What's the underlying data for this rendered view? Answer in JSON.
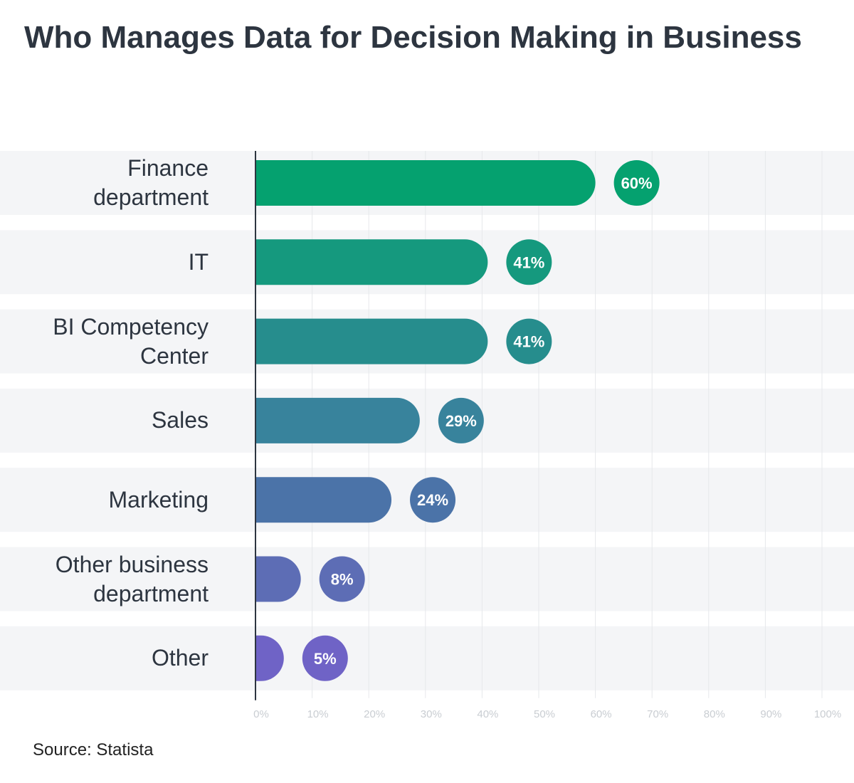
{
  "chart_data": {
    "type": "hbar",
    "title": "Who Manages Data for Decision Making in Business",
    "source": "Source: Statista",
    "categories": [
      "Finance department",
      "IT",
      "BI Competency Center",
      "Sales",
      "Marketing",
      "Other business department",
      "Other"
    ],
    "values": [
      60,
      41,
      41,
      29,
      24,
      8,
      5
    ],
    "value_labels": [
      "60%",
      "41%",
      "41%",
      "29%",
      "24%",
      "8%",
      "5%"
    ],
    "colors": [
      "#05a16f",
      "#15997e",
      "#268d8d",
      "#38839c",
      "#4b73a8",
      "#5d6db5",
      "#6f63c6"
    ],
    "xlim": [
      0,
      100
    ],
    "xticks": [
      {
        "value": 0,
        "label": "0%"
      },
      {
        "value": 10,
        "label": "10%"
      },
      {
        "value": 20,
        "label": "20%"
      },
      {
        "value": 30,
        "label": "30%"
      },
      {
        "value": 40,
        "label": "40%"
      },
      {
        "value": 50,
        "label": "50%"
      },
      {
        "value": 60,
        "label": "60%"
      },
      {
        "value": 70,
        "label": "70%"
      },
      {
        "value": 80,
        "label": "80%"
      },
      {
        "value": 90,
        "label": "90%"
      },
      {
        "value": 100,
        "label": "100%"
      }
    ],
    "grid": true
  }
}
